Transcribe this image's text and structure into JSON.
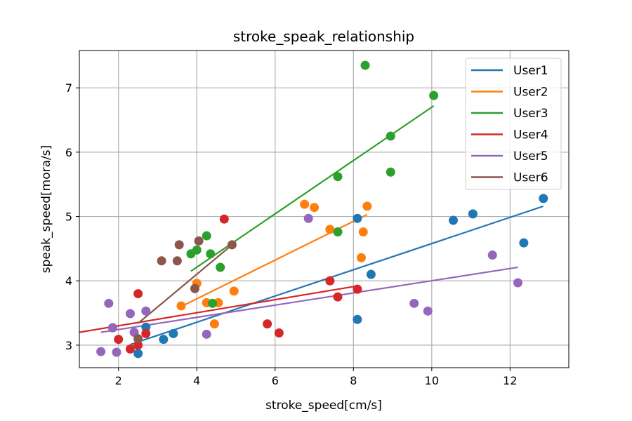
{
  "chart_data": {
    "type": "scatter",
    "title": "stroke_speak_relationship",
    "xlabel": "stroke_speed[cm/s]",
    "ylabel": "speak_speed[mora/s]",
    "xlim": [
      1.0,
      13.5
    ],
    "ylim": [
      2.65,
      7.58
    ],
    "xticks": [
      2,
      4,
      6,
      8,
      10,
      12
    ],
    "yticks": [
      3,
      4,
      5,
      6,
      7
    ],
    "grid": true,
    "legend_position": "top-right",
    "series": [
      {
        "name": "User1",
        "color": "#1f77b4",
        "points": [
          [
            2.5,
            2.87
          ],
          [
            2.7,
            3.28
          ],
          [
            3.15,
            3.09
          ],
          [
            3.4,
            3.18
          ],
          [
            8.1,
            3.4
          ],
          [
            8.45,
            4.1
          ],
          [
            8.1,
            4.97
          ],
          [
            10.55,
            4.94
          ],
          [
            11.05,
            5.04
          ],
          [
            12.35,
            4.59
          ],
          [
            12.85,
            5.28
          ]
        ],
        "fit": [
          [
            2.3,
            3.01
          ],
          [
            12.85,
            5.16
          ]
        ]
      },
      {
        "name": "User2",
        "color": "#ff7f0e",
        "points": [
          [
            3.6,
            3.61
          ],
          [
            4.0,
            3.96
          ],
          [
            4.25,
            3.66
          ],
          [
            4.45,
            3.33
          ],
          [
            4.55,
            3.66
          ],
          [
            4.95,
            3.84
          ],
          [
            6.75,
            5.19
          ],
          [
            7.0,
            5.14
          ],
          [
            7.4,
            4.8
          ],
          [
            8.2,
            4.36
          ],
          [
            8.25,
            4.76
          ],
          [
            8.35,
            5.16
          ]
        ],
        "fit": [
          [
            3.6,
            3.6
          ],
          [
            8.35,
            5.03
          ]
        ]
      },
      {
        "name": "User3",
        "color": "#2ca02c",
        "points": [
          [
            3.85,
            4.42
          ],
          [
            4.0,
            4.48
          ],
          [
            4.25,
            4.7
          ],
          [
            4.35,
            4.42
          ],
          [
            4.4,
            3.65
          ],
          [
            4.6,
            4.21
          ],
          [
            7.6,
            4.76
          ],
          [
            7.6,
            5.62
          ],
          [
            8.3,
            7.35
          ],
          [
            8.95,
            5.69
          ],
          [
            8.95,
            6.25
          ],
          [
            10.05,
            6.88
          ]
        ],
        "fit": [
          [
            3.85,
            4.15
          ],
          [
            10.05,
            6.72
          ]
        ]
      },
      {
        "name": "User4",
        "color": "#d62728",
        "points": [
          [
            1.85,
            3.27
          ],
          [
            2.0,
            3.09
          ],
          [
            2.3,
            2.94
          ],
          [
            2.5,
            3.0
          ],
          [
            2.5,
            3.8
          ],
          [
            2.7,
            3.18
          ],
          [
            4.7,
            4.96
          ],
          [
            5.8,
            3.33
          ],
          [
            6.1,
            3.19
          ],
          [
            7.4,
            4.0
          ],
          [
            7.6,
            3.75
          ],
          [
            8.1,
            3.87
          ]
        ],
        "fit": [
          [
            1.0,
            3.2
          ],
          [
            8.1,
            3.92
          ]
        ]
      },
      {
        "name": "User5",
        "color": "#9467bd",
        "points": [
          [
            1.55,
            2.9
          ],
          [
            1.75,
            3.65
          ],
          [
            1.85,
            3.27
          ],
          [
            1.95,
            2.89
          ],
          [
            2.3,
            3.49
          ],
          [
            2.4,
            3.2
          ],
          [
            2.7,
            3.53
          ],
          [
            4.25,
            3.17
          ],
          [
            6.85,
            4.97
          ],
          [
            9.55,
            3.65
          ],
          [
            9.9,
            3.53
          ],
          [
            11.55,
            4.4
          ],
          [
            12.2,
            3.97
          ]
        ],
        "fit": [
          [
            1.55,
            3.2
          ],
          [
            12.2,
            4.21
          ]
        ]
      },
      {
        "name": "User6",
        "color": "#8c564b",
        "points": [
          [
            2.5,
            3.1
          ],
          [
            3.1,
            4.31
          ],
          [
            3.5,
            4.31
          ],
          [
            3.55,
            4.56
          ],
          [
            3.95,
            3.88
          ],
          [
            4.05,
            4.62
          ],
          [
            4.9,
            4.56
          ]
        ],
        "fit": [
          [
            2.5,
            3.34
          ],
          [
            4.9,
            4.56
          ]
        ]
      }
    ]
  }
}
